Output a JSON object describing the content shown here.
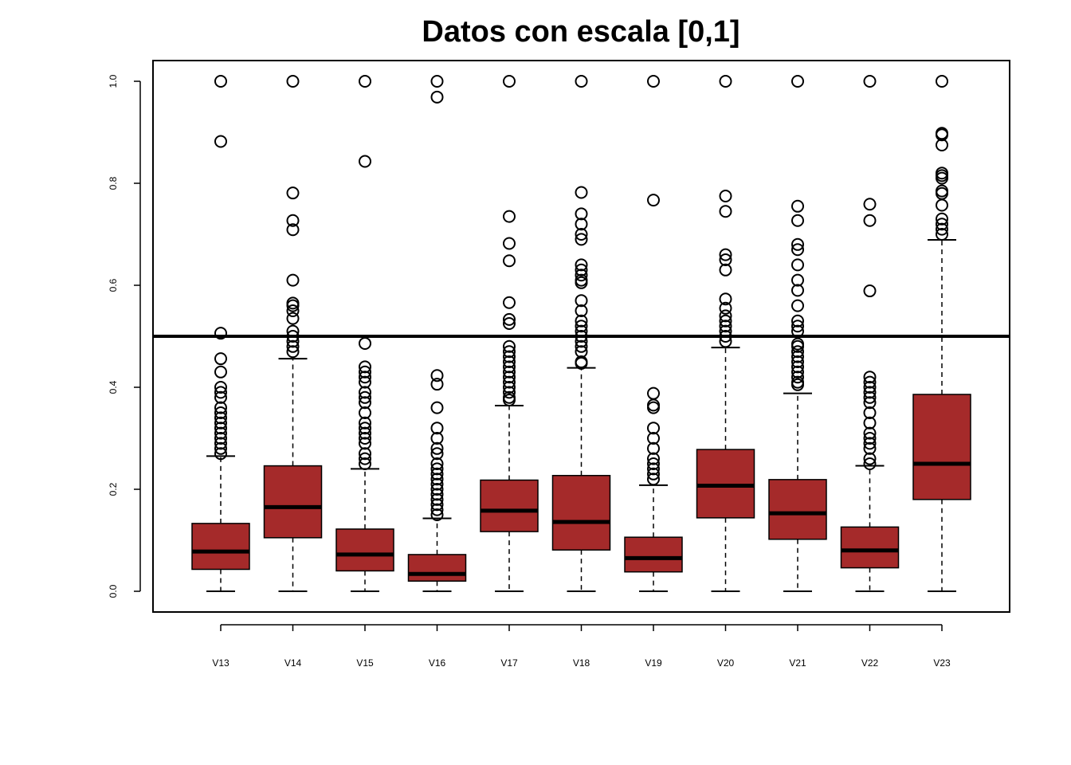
{
  "chart_data": {
    "type": "boxplot",
    "title": "Datos con escala [0,1]",
    "xlabel": "",
    "ylabel": "",
    "ylim": [
      0,
      1
    ],
    "y_ticks": [
      "0.0",
      "0.2",
      "0.4",
      "0.6",
      "0.8",
      "1.0"
    ],
    "reference_line": 0.5,
    "grid": false,
    "legend": "none",
    "colors": {
      "box_fill": "#a52a2a",
      "stroke": "#000000"
    },
    "categories": [
      "V13",
      "V14",
      "V15",
      "V16",
      "V17",
      "V18",
      "V19",
      "V20",
      "V21",
      "V22",
      "V23"
    ],
    "boxes": [
      {
        "name": "V13",
        "whisker_low": 0.0,
        "q1": 0.043,
        "median": 0.078,
        "q3": 0.133,
        "whisker_high": 0.265,
        "outliers": [
          0.27,
          0.28,
          0.29,
          0.3,
          0.31,
          0.32,
          0.33,
          0.34,
          0.35,
          0.36,
          0.38,
          0.39,
          0.4,
          0.43,
          0.456,
          0.506,
          0.882,
          1.0
        ]
      },
      {
        "name": "V14",
        "whisker_low": 0.0,
        "q1": 0.105,
        "median": 0.165,
        "q3": 0.246,
        "whisker_high": 0.456,
        "outliers": [
          0.47,
          0.48,
          0.49,
          0.5,
          0.51,
          0.535,
          0.55,
          0.56,
          0.565,
          0.61,
          0.709,
          0.727,
          0.781,
          1.0
        ]
      },
      {
        "name": "V15",
        "whisker_low": 0.0,
        "q1": 0.04,
        "median": 0.072,
        "q3": 0.122,
        "whisker_high": 0.24,
        "outliers": [
          0.25,
          0.26,
          0.27,
          0.29,
          0.3,
          0.31,
          0.32,
          0.33,
          0.35,
          0.37,
          0.38,
          0.39,
          0.41,
          0.42,
          0.43,
          0.44,
          0.486,
          0.843,
          1.0
        ]
      },
      {
        "name": "V16",
        "whisker_low": 0.0,
        "q1": 0.02,
        "median": 0.034,
        "q3": 0.072,
        "whisker_high": 0.143,
        "outliers": [
          0.15,
          0.16,
          0.17,
          0.18,
          0.19,
          0.2,
          0.21,
          0.22,
          0.23,
          0.24,
          0.25,
          0.27,
          0.28,
          0.3,
          0.32,
          0.36,
          0.406,
          0.423,
          0.969,
          1.0
        ]
      },
      {
        "name": "V17",
        "whisker_low": 0.0,
        "q1": 0.117,
        "median": 0.158,
        "q3": 0.218,
        "whisker_high": 0.364,
        "outliers": [
          0.375,
          0.38,
          0.39,
          0.4,
          0.41,
          0.42,
          0.43,
          0.44,
          0.45,
          0.46,
          0.47,
          0.48,
          0.525,
          0.533,
          0.566,
          0.648,
          0.682,
          0.735,
          1.0
        ]
      },
      {
        "name": "V18",
        "whisker_low": 0.0,
        "q1": 0.081,
        "median": 0.136,
        "q3": 0.227,
        "whisker_high": 0.438,
        "outliers": [
          0.447,
          0.45,
          0.47,
          0.48,
          0.49,
          0.5,
          0.51,
          0.52,
          0.53,
          0.55,
          0.57,
          0.605,
          0.61,
          0.62,
          0.63,
          0.64,
          0.69,
          0.7,
          0.72,
          0.74,
          0.782,
          1.0
        ]
      },
      {
        "name": "V19",
        "whisker_low": 0.0,
        "q1": 0.038,
        "median": 0.065,
        "q3": 0.106,
        "whisker_high": 0.208,
        "outliers": [
          0.22,
          0.23,
          0.24,
          0.25,
          0.26,
          0.28,
          0.3,
          0.32,
          0.36,
          0.365,
          0.388,
          0.767,
          1.0
        ]
      },
      {
        "name": "V20",
        "whisker_low": 0.0,
        "q1": 0.144,
        "median": 0.207,
        "q3": 0.278,
        "whisker_high": 0.478,
        "outliers": [
          0.49,
          0.5,
          0.51,
          0.52,
          0.53,
          0.54,
          0.555,
          0.573,
          0.63,
          0.65,
          0.66,
          0.745,
          0.775,
          1.0
        ]
      },
      {
        "name": "V21",
        "whisker_low": 0.0,
        "q1": 0.102,
        "median": 0.153,
        "q3": 0.219,
        "whisker_high": 0.388,
        "outliers": [
          0.405,
          0.41,
          0.42,
          0.43,
          0.44,
          0.45,
          0.46,
          0.47,
          0.48,
          0.485,
          0.51,
          0.52,
          0.53,
          0.56,
          0.59,
          0.61,
          0.64,
          0.67,
          0.68,
          0.727,
          0.755,
          1.0
        ]
      },
      {
        "name": "V22",
        "whisker_low": 0.0,
        "q1": 0.046,
        "median": 0.08,
        "q3": 0.126,
        "whisker_high": 0.246,
        "outliers": [
          0.25,
          0.26,
          0.28,
          0.29,
          0.3,
          0.31,
          0.33,
          0.35,
          0.37,
          0.38,
          0.39,
          0.4,
          0.41,
          0.42,
          0.589,
          0.727,
          0.759,
          1.0
        ]
      },
      {
        "name": "V23",
        "whisker_low": 0.0,
        "q1": 0.18,
        "median": 0.25,
        "q3": 0.386,
        "whisker_high": 0.689,
        "outliers": [
          0.7,
          0.71,
          0.72,
          0.73,
          0.757,
          0.78,
          0.785,
          0.81,
          0.815,
          0.82,
          0.875,
          0.895,
          0.898,
          1.0
        ]
      }
    ]
  }
}
